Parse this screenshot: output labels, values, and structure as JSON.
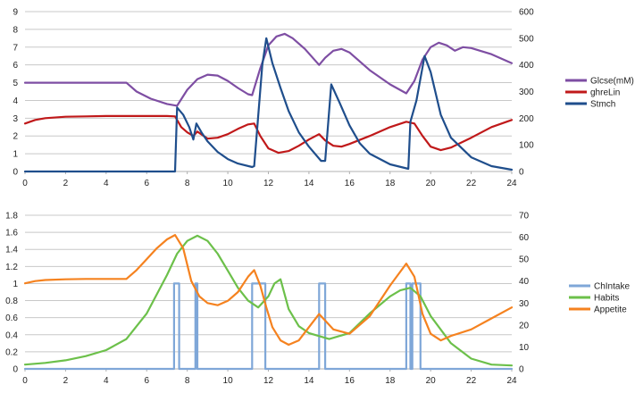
{
  "chart_data": [
    {
      "type": "line",
      "xlim": [
        0,
        24
      ],
      "ylim_left": [
        0,
        9
      ],
      "ylim_right": [
        0,
        600
      ],
      "x_ticks": [
        0,
        2,
        4,
        6,
        8,
        10,
        12,
        14,
        16,
        18,
        20,
        22,
        24
      ],
      "left_ticks": [
        0,
        1,
        2,
        3,
        4,
        5,
        6,
        7,
        8,
        9
      ],
      "right_ticks": [
        0,
        100,
        200,
        300,
        400,
        500,
        600
      ],
      "grid": true,
      "legend_position": "right",
      "series": [
        {
          "name": "Glcse(mM)",
          "color": "#7e4ea3",
          "axis": "left",
          "x": [
            0,
            5,
            5.5,
            6.2,
            7,
            7.5,
            8,
            8.5,
            9,
            9.5,
            10,
            10.5,
            11,
            11.2,
            11.6,
            12,
            12.4,
            12.8,
            13.2,
            13.8,
            14.5,
            14.8,
            15.2,
            15.6,
            16,
            17,
            18,
            18.8,
            19.2,
            19.6,
            20,
            20.4,
            20.8,
            21.2,
            21.6,
            22,
            23,
            24
          ],
          "y": [
            5,
            5,
            4.5,
            4.1,
            3.8,
            3.7,
            4.6,
            5.2,
            5.45,
            5.4,
            5.1,
            4.7,
            4.35,
            4.3,
            5.8,
            7.1,
            7.6,
            7.75,
            7.5,
            6.9,
            6.0,
            6.4,
            6.8,
            6.9,
            6.7,
            5.7,
            4.9,
            4.4,
            5.1,
            6.3,
            7.0,
            7.25,
            7.1,
            6.8,
            7.0,
            6.95,
            6.6,
            6.1
          ]
        },
        {
          "name": "ghreLin",
          "color": "#c0191a",
          "axis": "left",
          "x": [
            0,
            0.5,
            1,
            2,
            3,
            4,
            5,
            6,
            7,
            7.4,
            7.7,
            8,
            8.3,
            8.5,
            9,
            9.5,
            10,
            10.5,
            11,
            11.3,
            11.6,
            12,
            12.5,
            13,
            13.5,
            14,
            14.5,
            14.8,
            15.2,
            15.6,
            16,
            17,
            18,
            18.8,
            19.2,
            19.6,
            20,
            20.5,
            21,
            22,
            23,
            24
          ],
          "y": [
            2.7,
            2.9,
            3.0,
            3.08,
            3.1,
            3.12,
            3.12,
            3.12,
            3.12,
            3.1,
            2.5,
            2.2,
            2.0,
            2.25,
            1.85,
            1.9,
            2.1,
            2.4,
            2.65,
            2.7,
            2.0,
            1.3,
            1.05,
            1.15,
            1.45,
            1.8,
            2.1,
            1.75,
            1.45,
            1.4,
            1.55,
            2.0,
            2.5,
            2.8,
            2.7,
            2.0,
            1.4,
            1.2,
            1.35,
            1.9,
            2.5,
            2.9
          ]
        },
        {
          "name": "Stmch",
          "color": "#1f4e8c",
          "axis": "left",
          "x": [
            0,
            7.4,
            7.5,
            7.8,
            8.1,
            8.3,
            8.45,
            8.7,
            9,
            9.5,
            10,
            10.5,
            11.2,
            11.3,
            11.7,
            11.9,
            12.2,
            12.6,
            13,
            13.5,
            14,
            14.6,
            14.8,
            15.1,
            15.5,
            16,
            16.5,
            17,
            18,
            18.9,
            19.0,
            19.3,
            19.7,
            20,
            20.5,
            21,
            22,
            23,
            24
          ],
          "y": [
            0,
            0,
            3.6,
            3.2,
            2.5,
            1.8,
            2.7,
            2.2,
            1.7,
            1.1,
            0.7,
            0.45,
            0.25,
            0.3,
            6.0,
            7.5,
            6.1,
            4.7,
            3.4,
            2.2,
            1.4,
            0.6,
            0.6,
            4.9,
            3.9,
            2.6,
            1.6,
            1.0,
            0.4,
            0.15,
            2.8,
            4.0,
            6.5,
            5.6,
            3.2,
            1.9,
            0.8,
            0.3,
            0.1
          ]
        }
      ]
    },
    {
      "type": "line",
      "xlim": [
        0,
        24
      ],
      "ylim_left": [
        0,
        1.8
      ],
      "ylim_right": [
        0,
        70
      ],
      "x_ticks": [
        0,
        2,
        4,
        6,
        8,
        10,
        12,
        14,
        16,
        18,
        20,
        22,
        24
      ],
      "left_ticks": [
        0,
        0.2,
        0.4,
        0.6,
        0.8,
        1,
        1.2,
        1.4,
        1.6,
        1.8
      ],
      "right_ticks": [
        0,
        10,
        20,
        30,
        40,
        50,
        60,
        70
      ],
      "grid": true,
      "legend_position": "right",
      "series": [
        {
          "name": "ChIntake",
          "color": "#7fa7d8",
          "axis": "left",
          "x": [
            0,
            7.35,
            7.35,
            7.6,
            7.6,
            8.4,
            8.4,
            8.5,
            8.5,
            11.2,
            11.2,
            11.85,
            11.85,
            14.5,
            14.5,
            14.8,
            14.8,
            18.8,
            18.8,
            19.0,
            19.0,
            19.1,
            19.1,
            19.5,
            19.5,
            24
          ],
          "y": [
            0,
            0,
            1,
            1,
            0,
            0,
            1,
            1,
            0,
            0,
            1,
            1,
            0,
            0,
            1,
            1,
            0,
            0,
            1,
            1,
            0,
            0,
            1,
            1,
            0,
            0
          ]
        },
        {
          "name": "Habits",
          "color": "#6cc04a",
          "axis": "left",
          "x": [
            0,
            1,
            2,
            3,
            4,
            5,
            6,
            7,
            7.5,
            8,
            8.5,
            9,
            9.5,
            10,
            10.5,
            11,
            11.5,
            12,
            12.3,
            12.6,
            13,
            13.5,
            14,
            15,
            16,
            17,
            18,
            18.5,
            19,
            19.5,
            20,
            21,
            22,
            23,
            24
          ],
          "y": [
            0.05,
            0.07,
            0.1,
            0.15,
            0.22,
            0.35,
            0.65,
            1.1,
            1.35,
            1.5,
            1.56,
            1.5,
            1.35,
            1.15,
            0.95,
            0.8,
            0.72,
            0.85,
            1.0,
            1.05,
            0.7,
            0.5,
            0.42,
            0.35,
            0.42,
            0.65,
            0.85,
            0.92,
            0.95,
            0.85,
            0.62,
            0.3,
            0.12,
            0.05,
            0.04
          ]
        },
        {
          "name": "Appetite",
          "color": "#f5821f",
          "axis": "right",
          "x": [
            0,
            0.5,
            1,
            2,
            3,
            4,
            5,
            5.5,
            6,
            6.5,
            7,
            7.4,
            7.8,
            8.2,
            8.6,
            9,
            9.5,
            10,
            10.5,
            11,
            11.3,
            11.6,
            11.9,
            12.2,
            12.6,
            13,
            13.5,
            14,
            14.5,
            14.8,
            15.2,
            16,
            17,
            18,
            18.8,
            19.2,
            19.6,
            20,
            20.5,
            21,
            22,
            23,
            24
          ],
          "y": [
            39,
            40,
            40.5,
            40.8,
            41,
            41,
            41,
            45,
            50,
            55,
            59,
            61,
            55,
            40,
            33,
            30,
            29,
            31,
            35,
            42,
            45,
            38,
            28,
            19,
            13,
            11,
            13,
            19,
            25,
            22,
            18,
            16,
            24,
            38,
            48,
            42,
            25,
            16,
            13,
            15,
            18,
            23,
            28
          ]
        }
      ]
    }
  ]
}
